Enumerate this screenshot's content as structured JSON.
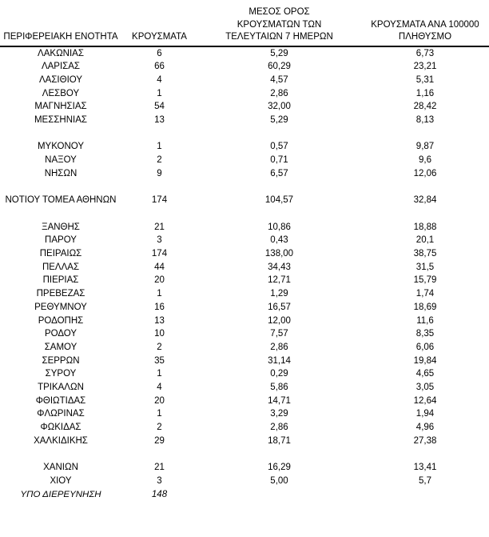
{
  "colors": {
    "text": "#000000",
    "background": "#ffffff",
    "header_rule": "#000000"
  },
  "table": {
    "headers": [
      "ΠΕΡΙΦΕΡΕΙΑΚΗ ΕΝΟΤΗΤΑ",
      "ΚΡΟΥΣΜΑΤΑ",
      "ΜΕΣΟΣ ΟΡΟΣ\nΚΡΟΥΣΜΑΤΩΝ ΤΩΝ\nΤΕΛΕΥΤΑΙΩΝ 7 ΗΜΕΡΩΝ",
      "ΚΡΟΥΣΜΑΤΑ ΑΝΑ 100000\nΠΛΗΘΥΣΜΟ"
    ],
    "rows": [
      {
        "name": "ΛΑΚΩΝΙΑΣ",
        "cases": "6",
        "avg7": "5,29",
        "per100k": "6,73"
      },
      {
        "name": "ΛΑΡΙΣΑΣ",
        "cases": "66",
        "avg7": "60,29",
        "per100k": "23,21"
      },
      {
        "name": "ΛΑΣΙΘΙΟΥ",
        "cases": "4",
        "avg7": "4,57",
        "per100k": "5,31"
      },
      {
        "name": "ΛΕΣΒΟΥ",
        "cases": "1",
        "avg7": "2,86",
        "per100k": "1,16"
      },
      {
        "name": "ΜΑΓΝΗΣΙΑΣ",
        "cases": "54",
        "avg7": "32,00",
        "per100k": "28,42"
      },
      {
        "name": "ΜΕΣΣΗΝΙΑΣ",
        "cases": "13",
        "avg7": "5,29",
        "per100k": "8,13"
      },
      {
        "blank": true
      },
      {
        "name": "ΜΥΚΟΝΟΥ",
        "cases": "1",
        "avg7": "0,57",
        "per100k": "9,87"
      },
      {
        "name": "ΝΑΞΟΥ",
        "cases": "2",
        "avg7": "0,71",
        "per100k": "9,6"
      },
      {
        "name": "ΝΗΣΩΝ",
        "cases": "9",
        "avg7": "6,57",
        "per100k": "12,06"
      },
      {
        "blank": true
      },
      {
        "name": "ΝΟΤΙΟΥ ΤΟΜΕΑ ΑΘΗΝΩΝ",
        "cases": "174",
        "avg7": "104,57",
        "per100k": "32,84"
      },
      {
        "blank": true
      },
      {
        "name": "ΞΑΝΘΗΣ",
        "cases": "21",
        "avg7": "10,86",
        "per100k": "18,88"
      },
      {
        "name": "ΠΑΡΟΥ",
        "cases": "3",
        "avg7": "0,43",
        "per100k": "20,1"
      },
      {
        "name": "ΠΕΙΡΑΙΩΣ",
        "cases": "174",
        "avg7": "138,00",
        "per100k": "38,75"
      },
      {
        "name": "ΠΕΛΛΑΣ",
        "cases": "44",
        "avg7": "34,43",
        "per100k": "31,5"
      },
      {
        "name": "ΠΙΕΡΙΑΣ",
        "cases": "20",
        "avg7": "12,71",
        "per100k": "15,79"
      },
      {
        "name": "ΠΡΕΒΕΖΑΣ",
        "cases": "1",
        "avg7": "1,29",
        "per100k": "1,74"
      },
      {
        "name": "ΡΕΘΥΜΝΟΥ",
        "cases": "16",
        "avg7": "16,57",
        "per100k": "18,69"
      },
      {
        "name": "ΡΟΔΟΠΗΣ",
        "cases": "13",
        "avg7": "12,00",
        "per100k": "11,6"
      },
      {
        "name": "ΡΟΔΟΥ",
        "cases": "10",
        "avg7": "7,57",
        "per100k": "8,35"
      },
      {
        "name": "ΣΑΜΟΥ",
        "cases": "2",
        "avg7": "2,86",
        "per100k": "6,06"
      },
      {
        "name": "ΣΕΡΡΩΝ",
        "cases": "35",
        "avg7": "31,14",
        "per100k": "19,84"
      },
      {
        "name": "ΣΥΡΟΥ",
        "cases": "1",
        "avg7": "0,29",
        "per100k": "4,65"
      },
      {
        "name": "ΤΡΙΚΑΛΩΝ",
        "cases": "4",
        "avg7": "5,86",
        "per100k": "3,05"
      },
      {
        "name": "ΦΘΙΩΤΙΔΑΣ",
        "cases": "20",
        "avg7": "14,71",
        "per100k": "12,64"
      },
      {
        "name": "ΦΛΩΡΙΝΑΣ",
        "cases": "1",
        "avg7": "3,29",
        "per100k": "1,94"
      },
      {
        "name": "ΦΩΚΙΔΑΣ",
        "cases": "2",
        "avg7": "2,86",
        "per100k": "4,96"
      },
      {
        "name": "ΧΑΛΚΙΔΙΚΗΣ",
        "cases": "29",
        "avg7": "18,71",
        "per100k": "27,38"
      },
      {
        "blank": true
      },
      {
        "name": "ΧΑΝΙΩΝ",
        "cases": "21",
        "avg7": "16,29",
        "per100k": "13,41"
      },
      {
        "name": "ΧΙΟΥ",
        "cases": "3",
        "avg7": "5,00",
        "per100k": "5,7"
      },
      {
        "name": "ΥΠΟ ΔΙΕΡΕΥΝΗΣΗ",
        "cases": "148",
        "italic": true
      }
    ]
  }
}
